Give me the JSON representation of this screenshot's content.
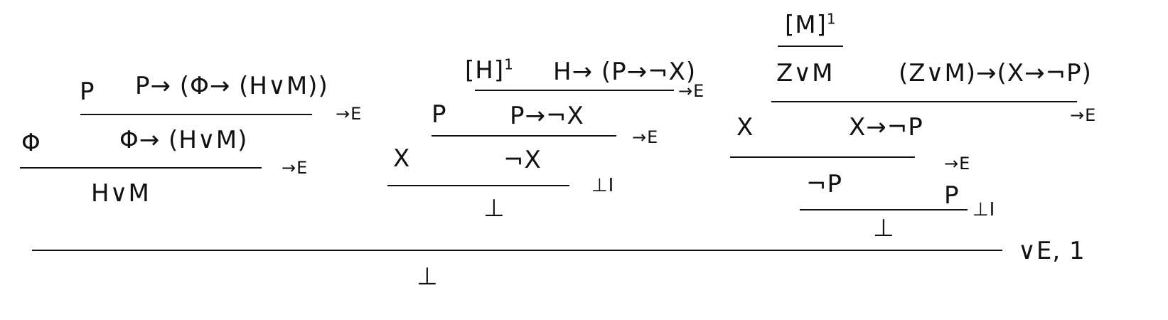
{
  "proof": {
    "left": {
      "p": "P",
      "p_impl": "P→ (Φ→ (H∨M))",
      "rule_1": "→E",
      "phi": "Φ",
      "phi_impl": "Φ→ (H∨M)",
      "rule_2": "→E",
      "conclusion": "H∨M"
    },
    "middle": {
      "assume_h": "[H]",
      "assume_h_mark": "1",
      "h_impl": "H→ (P→¬X)",
      "rule_1": "→E",
      "p": "P",
      "p_impl": "P→¬X",
      "rule_2": "→E",
      "x": "X",
      "not_x": "¬X",
      "rule_3": "⊥I",
      "conclusion": "⊥"
    },
    "right": {
      "assume_m": "[M]",
      "assume_m_mark": "1",
      "z_or_m": "Z∨M",
      "zm_impl": "(Z∨M)→(X→¬P)",
      "rule_1": "→E",
      "x": "X",
      "x_impl": "X→¬P",
      "rule_2": "→E",
      "not_p": "¬P",
      "p": "P",
      "rule_3": "⊥I",
      "conclusion": "⊥"
    },
    "final": {
      "rule": "∨E, 1",
      "conclusion": "⊥"
    }
  }
}
